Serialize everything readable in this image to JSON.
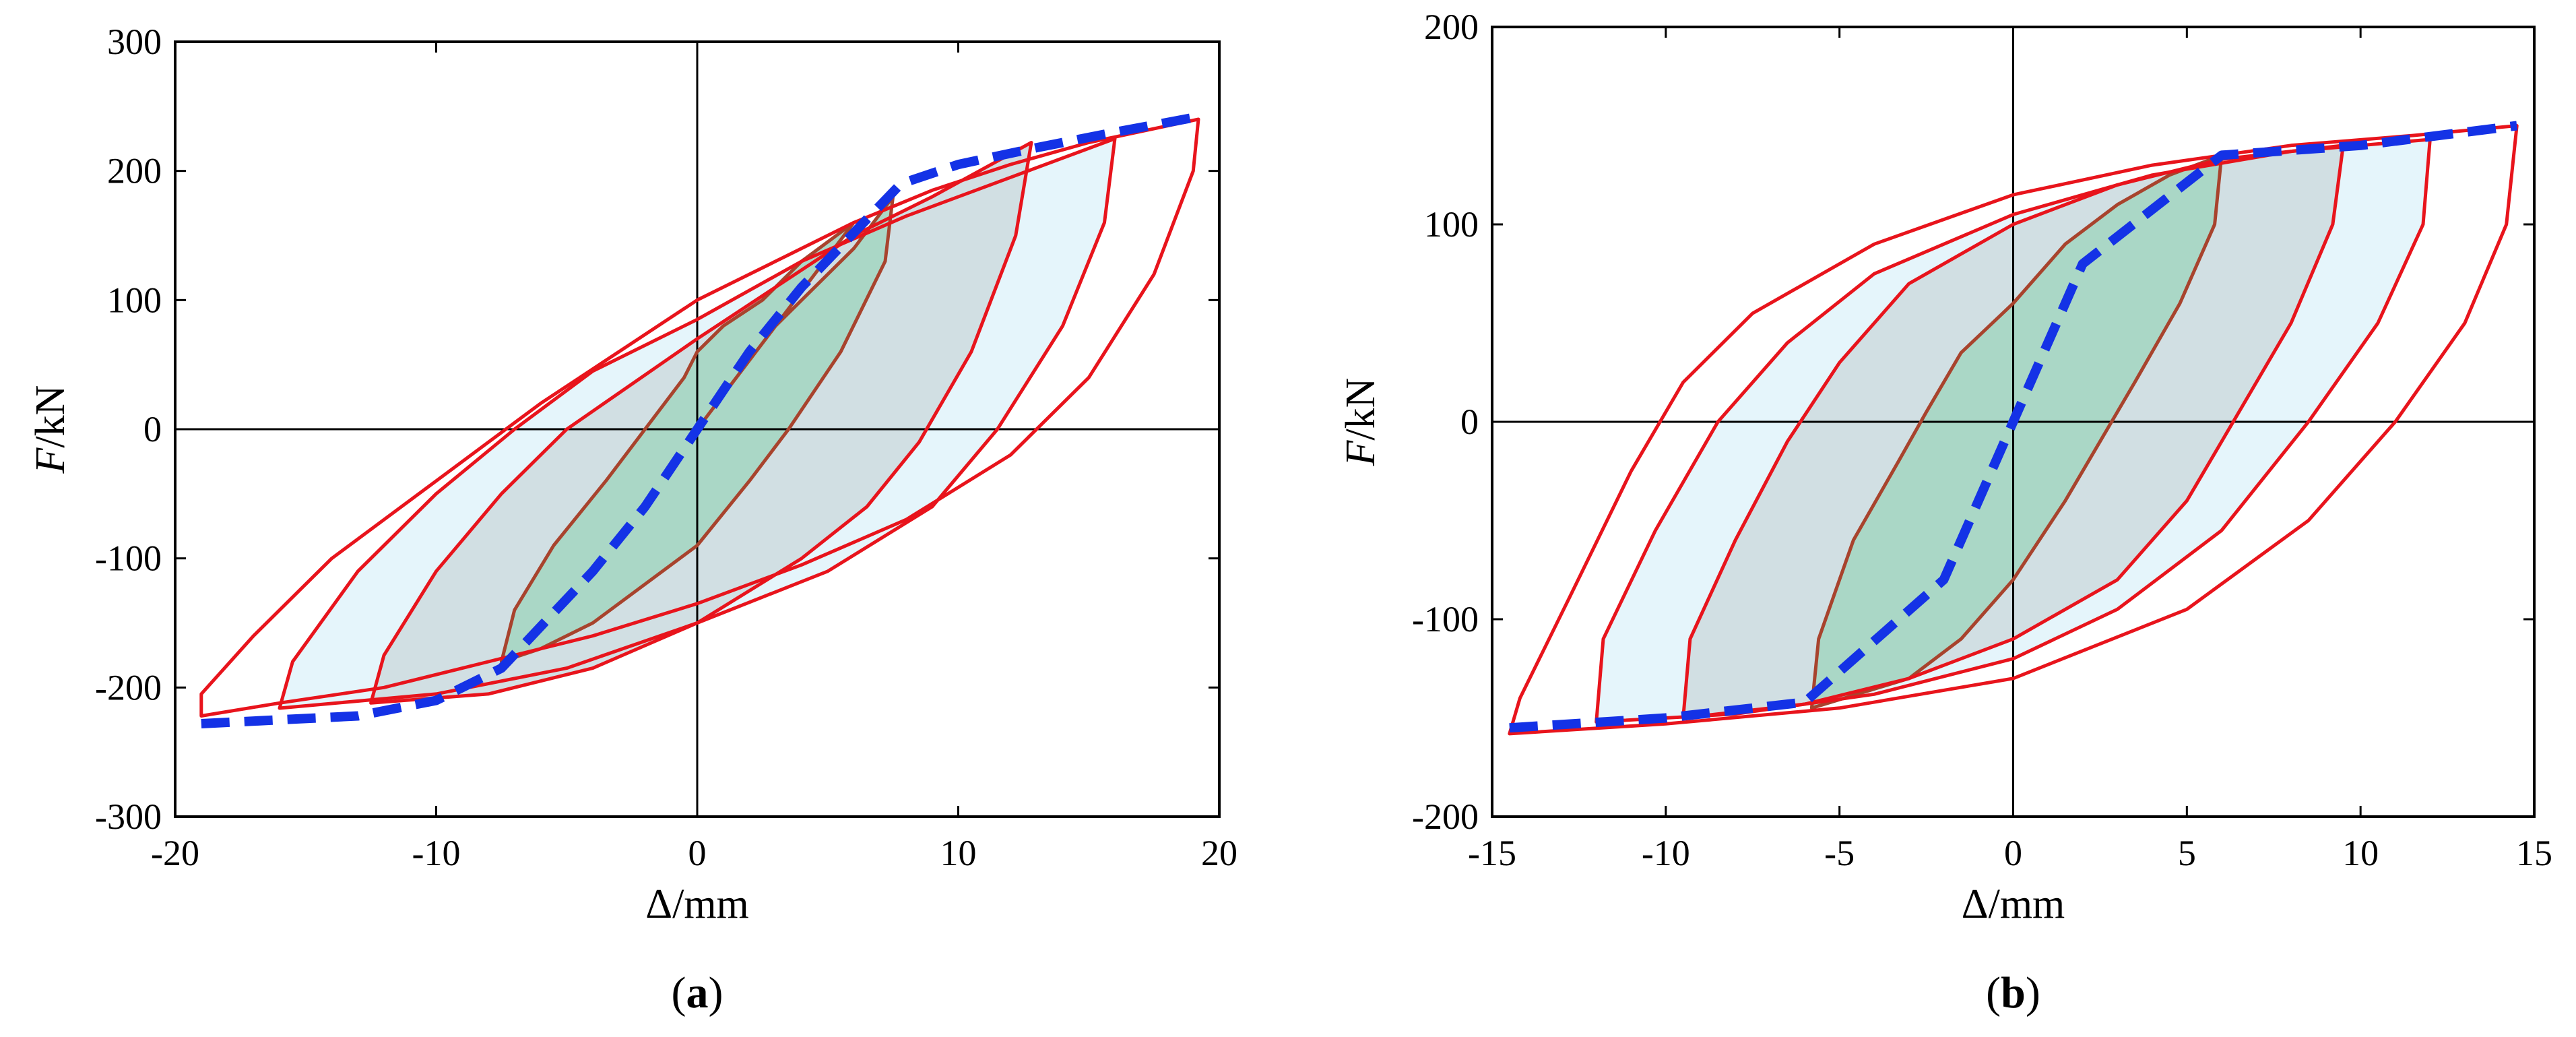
{
  "chart_data": [
    {
      "type": "line",
      "panel_label": "a",
      "xlabel": "Δ/mm",
      "ylabel_italic": "F",
      "ylabel_rest": "/kN",
      "xlim": [
        -20,
        20
      ],
      "ylim": [
        -300,
        300
      ],
      "xticks": [
        -20,
        -10,
        0,
        10,
        20
      ],
      "yticks": [
        -300,
        -200,
        -100,
        0,
        100,
        200,
        300
      ],
      "colors": {
        "loops": "#e8141c",
        "inner_loops": "#a8432d",
        "skeleton": "#1432e6",
        "fill_outer": "#e4f4fb",
        "fill_mid": "#d0dde2",
        "fill_inner": "#a8d6c4"
      },
      "series": [
        {
          "name": "loop-1",
          "kind": "loop",
          "fill": "inner",
          "points": [
            [
              0,
              0
            ],
            [
              1.5,
              40
            ],
            [
              3,
              80
            ],
            [
              4.5,
              110
            ],
            [
              6,
              140
            ],
            [
              7.5,
              180
            ],
            [
              7.2,
              130
            ],
            [
              5.5,
              60
            ],
            [
              3.5,
              0
            ],
            [
              2,
              -40
            ],
            [
              0,
              -90
            ],
            [
              -2,
              -120
            ],
            [
              -4,
              -150
            ],
            [
              -6,
              -170
            ],
            [
              -7.5,
              -180
            ],
            [
              -7,
              -140
            ],
            [
              -5.5,
              -90
            ],
            [
              -3.5,
              -40
            ],
            [
              -2,
              0
            ],
            [
              -0.5,
              40
            ],
            [
              0,
              60
            ],
            [
              1,
              80
            ],
            [
              2.5,
              100
            ],
            [
              4,
              130
            ],
            [
              6,
              160
            ]
          ]
        },
        {
          "name": "loop-2",
          "kind": "loop",
          "fill": "mid",
          "points": [
            [
              12.8,
              222
            ],
            [
              12.2,
              150
            ],
            [
              10.5,
              60
            ],
            [
              8.5,
              -10
            ],
            [
              6.5,
              -60
            ],
            [
              4,
              -100
            ],
            [
              0,
              -150
            ],
            [
              -4,
              -185
            ],
            [
              -8,
              -205
            ],
            [
              -12.5,
              -212
            ],
            [
              -12,
              -175
            ],
            [
              -10,
              -110
            ],
            [
              -7.5,
              -50
            ],
            [
              -5,
              0
            ],
            [
              -2.5,
              35
            ],
            [
              0,
              70
            ],
            [
              3,
              110
            ],
            [
              6,
              150
            ],
            [
              9,
              180
            ],
            [
              12.8,
              222
            ]
          ]
        },
        {
          "name": "loop-3",
          "kind": "loop",
          "fill": "outer",
          "points": [
            [
              16,
              225
            ],
            [
              15.6,
              160
            ],
            [
              14,
              80
            ],
            [
              11.5,
              0
            ],
            [
              9,
              -60
            ],
            [
              5,
              -110
            ],
            [
              0,
              -150
            ],
            [
              -5,
              -185
            ],
            [
              -10,
              -205
            ],
            [
              -16,
              -216
            ],
            [
              -15.5,
              -180
            ],
            [
              -13,
              -110
            ],
            [
              -10,
              -50
            ],
            [
              -7,
              0
            ],
            [
              -4,
              45
            ],
            [
              0,
              85
            ],
            [
              4,
              130
            ],
            [
              8,
              165
            ],
            [
              12,
              195
            ],
            [
              16,
              225
            ]
          ]
        },
        {
          "name": "loop-4",
          "kind": "loop",
          "fill": "none",
          "points": [
            [
              19.2,
              240
            ],
            [
              19,
              200
            ],
            [
              17.5,
              120
            ],
            [
              15,
              40
            ],
            [
              12,
              -20
            ],
            [
              8,
              -70
            ],
            [
              4,
              -105
            ],
            [
              0,
              -135
            ],
            [
              -4,
              -160
            ],
            [
              -8,
              -180
            ],
            [
              -12,
              -200
            ],
            [
              -16,
              -212
            ],
            [
              -19,
              -222
            ],
            [
              -19,
              -205
            ],
            [
              -17,
              -160
            ],
            [
              -14,
              -100
            ],
            [
              -10,
              -40
            ],
            [
              -6,
              20
            ],
            [
              -3,
              60
            ],
            [
              0,
              100
            ],
            [
              3,
              130
            ],
            [
              6,
              160
            ],
            [
              9,
              185
            ],
            [
              12,
              205
            ],
            [
              15,
              222
            ],
            [
              19.2,
              240
            ]
          ]
        },
        {
          "name": "skeleton",
          "kind": "skeleton",
          "points": [
            [
              -19,
              -228
            ],
            [
              -13,
              -222
            ],
            [
              -10,
              -210
            ],
            [
              -7.5,
              -185
            ],
            [
              -4,
              -110
            ],
            [
              -2,
              -60
            ],
            [
              0,
              0
            ],
            [
              2,
              60
            ],
            [
              4,
              110
            ],
            [
              7.8,
              190
            ],
            [
              10,
              205
            ],
            [
              13,
              218
            ],
            [
              16,
              230
            ],
            [
              19.2,
              242
            ]
          ]
        }
      ]
    },
    {
      "type": "line",
      "panel_label": "b",
      "xlabel": "Δ/mm",
      "ylabel_italic": "F",
      "ylabel_rest": "/kN",
      "xlim": [
        -15,
        15
      ],
      "ylim": [
        -200,
        200
      ],
      "xticks": [
        -15,
        -10,
        -5,
        0,
        5,
        10,
        15
      ],
      "yticks": [
        -200,
        -100,
        0,
        100,
        200
      ],
      "colors": {
        "loops": "#e8141c",
        "inner_loops": "#a8432d",
        "skeleton": "#1432e6",
        "fill_outer": "#e4f4fb",
        "fill_mid": "#d0dde2",
        "fill_inner": "#a8d6c4"
      },
      "series": [
        {
          "name": "loop-1",
          "kind": "loop",
          "fill": "inner",
          "points": [
            [
              6,
              135
            ],
            [
              5.8,
              100
            ],
            [
              4.8,
              60
            ],
            [
              3.5,
              20
            ],
            [
              2.5,
              -10
            ],
            [
              1.5,
              -40
            ],
            [
              0,
              -80
            ],
            [
              -1.5,
              -110
            ],
            [
              -3,
              -130
            ],
            [
              -5.8,
              -145
            ],
            [
              -5.6,
              -110
            ],
            [
              -4.6,
              -60
            ],
            [
              -3.3,
              -20
            ],
            [
              -2.5,
              5
            ],
            [
              -1.5,
              35
            ],
            [
              0,
              60
            ],
            [
              1.5,
              90
            ],
            [
              3,
              110
            ],
            [
              4.5,
              125
            ],
            [
              6,
              135
            ]
          ]
        },
        {
          "name": "loop-2",
          "kind": "loop",
          "fill": "mid",
          "points": [
            [
              9.5,
              140
            ],
            [
              9.2,
              100
            ],
            [
              8,
              50
            ],
            [
              6.5,
              5
            ],
            [
              5,
              -40
            ],
            [
              3,
              -80
            ],
            [
              0,
              -110
            ],
            [
              -3,
              -130
            ],
            [
              -6,
              -143
            ],
            [
              -9.5,
              -150
            ],
            [
              -9.3,
              -110
            ],
            [
              -8,
              -60
            ],
            [
              -6.5,
              -10
            ],
            [
              -5,
              30
            ],
            [
              -3,
              70
            ],
            [
              0,
              100
            ],
            [
              3,
              120
            ],
            [
              6,
              133
            ],
            [
              9.5,
              140
            ]
          ]
        },
        {
          "name": "loop-3",
          "kind": "loop",
          "fill": "outer",
          "points": [
            [
              12,
              143
            ],
            [
              11.8,
              100
            ],
            [
              10.5,
              50
            ],
            [
              8.5,
              0
            ],
            [
              6,
              -55
            ],
            [
              3,
              -95
            ],
            [
              0,
              -120
            ],
            [
              -4,
              -138
            ],
            [
              -8,
              -148
            ],
            [
              -12,
              -152
            ],
            [
              -11.8,
              -110
            ],
            [
              -10.3,
              -55
            ],
            [
              -8.5,
              0
            ],
            [
              -6.5,
              40
            ],
            [
              -4,
              75
            ],
            [
              0,
              105
            ],
            [
              4,
              125
            ],
            [
              8,
              137
            ],
            [
              12,
              143
            ]
          ]
        },
        {
          "name": "loop-4",
          "kind": "loop",
          "fill": "none",
          "points": [
            [
              14.5,
              150
            ],
            [
              14.2,
              100
            ],
            [
              13,
              50
            ],
            [
              11,
              0
            ],
            [
              8.5,
              -50
            ],
            [
              5,
              -95
            ],
            [
              0,
              -130
            ],
            [
              -5,
              -145
            ],
            [
              -10,
              -153
            ],
            [
              -14.5,
              -158
            ],
            [
              -14.2,
              -140
            ],
            [
              -12.8,
              -90
            ],
            [
              -11,
              -25
            ],
            [
              -9.5,
              20
            ],
            [
              -7.5,
              55
            ],
            [
              -4,
              90
            ],
            [
              0,
              115
            ],
            [
              4,
              130
            ],
            [
              8,
              140
            ],
            [
              11.5,
              145
            ],
            [
              14.5,
              150
            ]
          ]
        },
        {
          "name": "skeleton",
          "kind": "skeleton",
          "points": [
            [
              -14.5,
              -155
            ],
            [
              -10,
              -150
            ],
            [
              -6,
              -142
            ],
            [
              -2,
              -80
            ],
            [
              0,
              0
            ],
            [
              2,
              80
            ],
            [
              6,
              135
            ],
            [
              10,
              140
            ],
            [
              14.5,
              150
            ]
          ]
        }
      ]
    }
  ]
}
